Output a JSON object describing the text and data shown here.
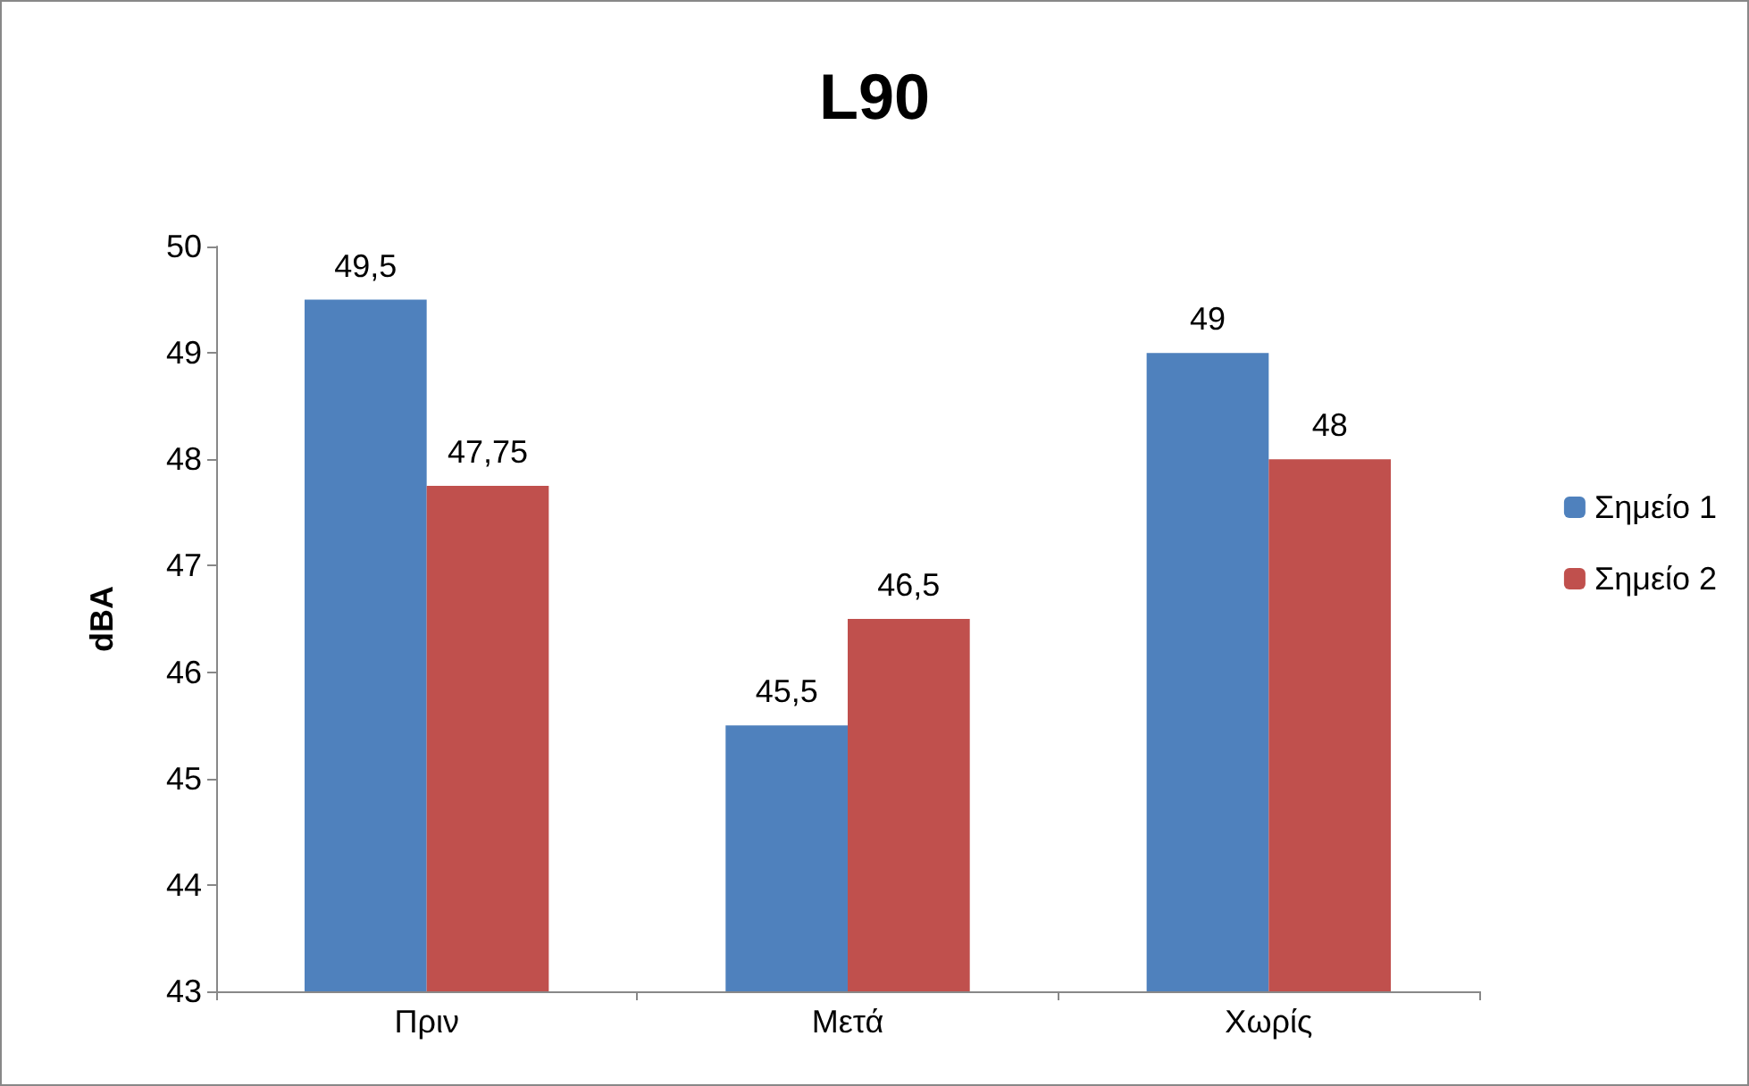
{
  "chart_data": {
    "type": "bar",
    "title": "L90",
    "ylabel": "dBA",
    "categories": [
      "Πριν",
      "Μετά",
      "Χωρίς"
    ],
    "series": [
      {
        "name": "Σημείο 1",
        "color": "#4f81bd",
        "values": [
          49.5,
          45.5,
          49
        ],
        "value_labels": [
          "49,5",
          "45,5",
          "49"
        ]
      },
      {
        "name": "Σημείο 2",
        "color": "#c0504d",
        "values": [
          47.75,
          46.5,
          48
        ],
        "value_labels": [
          "47,75",
          "46,5",
          "48"
        ]
      }
    ],
    "ylim": [
      43,
      50
    ],
    "yticks": [
      43,
      44,
      45,
      46,
      47,
      48,
      49,
      50
    ],
    "grid": false,
    "legend": "right"
  }
}
